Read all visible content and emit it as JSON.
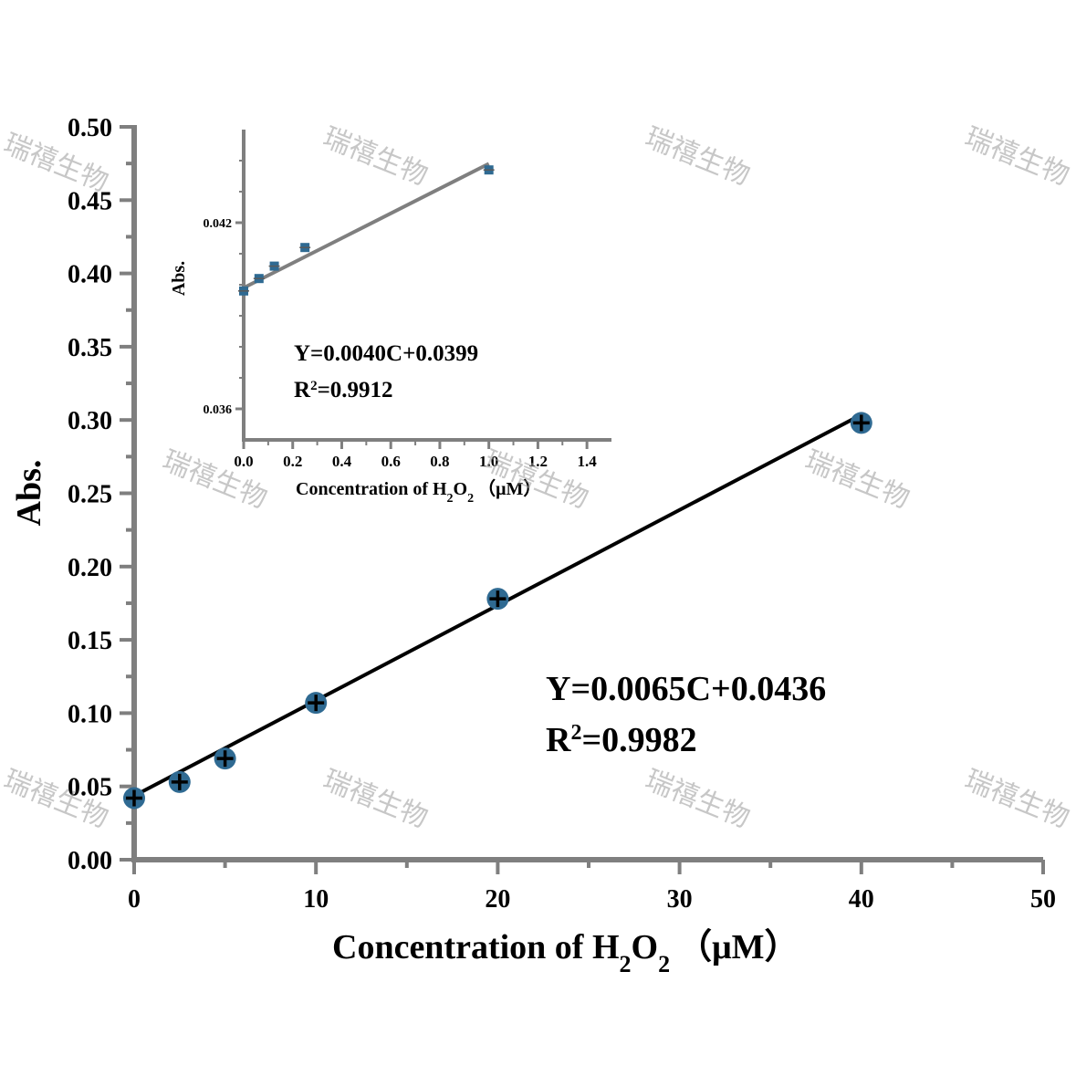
{
  "chart_data": [
    {
      "type": "scatter",
      "title": "",
      "xlabel": "Concentration of H2O2 （μM）",
      "ylabel": "Abs.",
      "xlim": [
        0,
        50
      ],
      "ylim": [
        0,
        0.5
      ],
      "x_ticks": [
        "0",
        "10",
        "20",
        "30",
        "40",
        "50"
      ],
      "y_ticks": [
        "0.00",
        "0.05",
        "0.10",
        "0.15",
        "0.20",
        "0.25",
        "0.30",
        "0.35",
        "0.40",
        "0.45",
        "0.50"
      ],
      "series": [
        {
          "x": [
            0,
            2.5,
            5,
            10,
            20,
            40
          ],
          "y": [
            0.042,
            0.053,
            0.069,
            0.107,
            0.178,
            0.298
          ],
          "color": "#2f6a92"
        }
      ],
      "fit": {
        "slope": 0.0065,
        "intercept": 0.0436
      },
      "equation": "Y=0.0065C+0.0436",
      "r2_prefix": "R",
      "r2_sup": "2",
      "r2_value": "=0.9982",
      "line_color": "#000000"
    },
    {
      "type": "scatter",
      "title": "",
      "xlabel": "Concentration of H2O2 （μM）",
      "ylabel": "Abs.",
      "xlim": [
        0,
        1.5
      ],
      "ylim": [
        0.035,
        0.045
      ],
      "x_ticks": [
        "0.0",
        "0.2",
        "0.4",
        "0.6",
        "0.8",
        "1.0",
        "1.2",
        "1.4"
      ],
      "y_ticks": [
        "0.036",
        "0.042"
      ],
      "series": [
        {
          "x": [
            0,
            0.0625,
            0.125,
            0.25,
            1.0
          ],
          "y": [
            0.0398,
            0.0402,
            0.0406,
            0.0412,
            0.0437
          ],
          "color": "#2f6a92"
        }
      ],
      "fit": {
        "slope": 0.004,
        "intercept": 0.0399
      },
      "equation": "Y=0.0040C+0.0399",
      "r2_prefix": "R",
      "r2_sup": "2",
      "r2_value": "=0.9912",
      "line_color": "#7f7f7f"
    }
  ],
  "axis_title_parts": {
    "x_prefix": "Concentration of H",
    "sub1": "2",
    "mid": "O",
    "sub2": "2",
    "x_suffix": "（μM）",
    "y": "Abs."
  },
  "watermark_text": "瑞禧生物"
}
